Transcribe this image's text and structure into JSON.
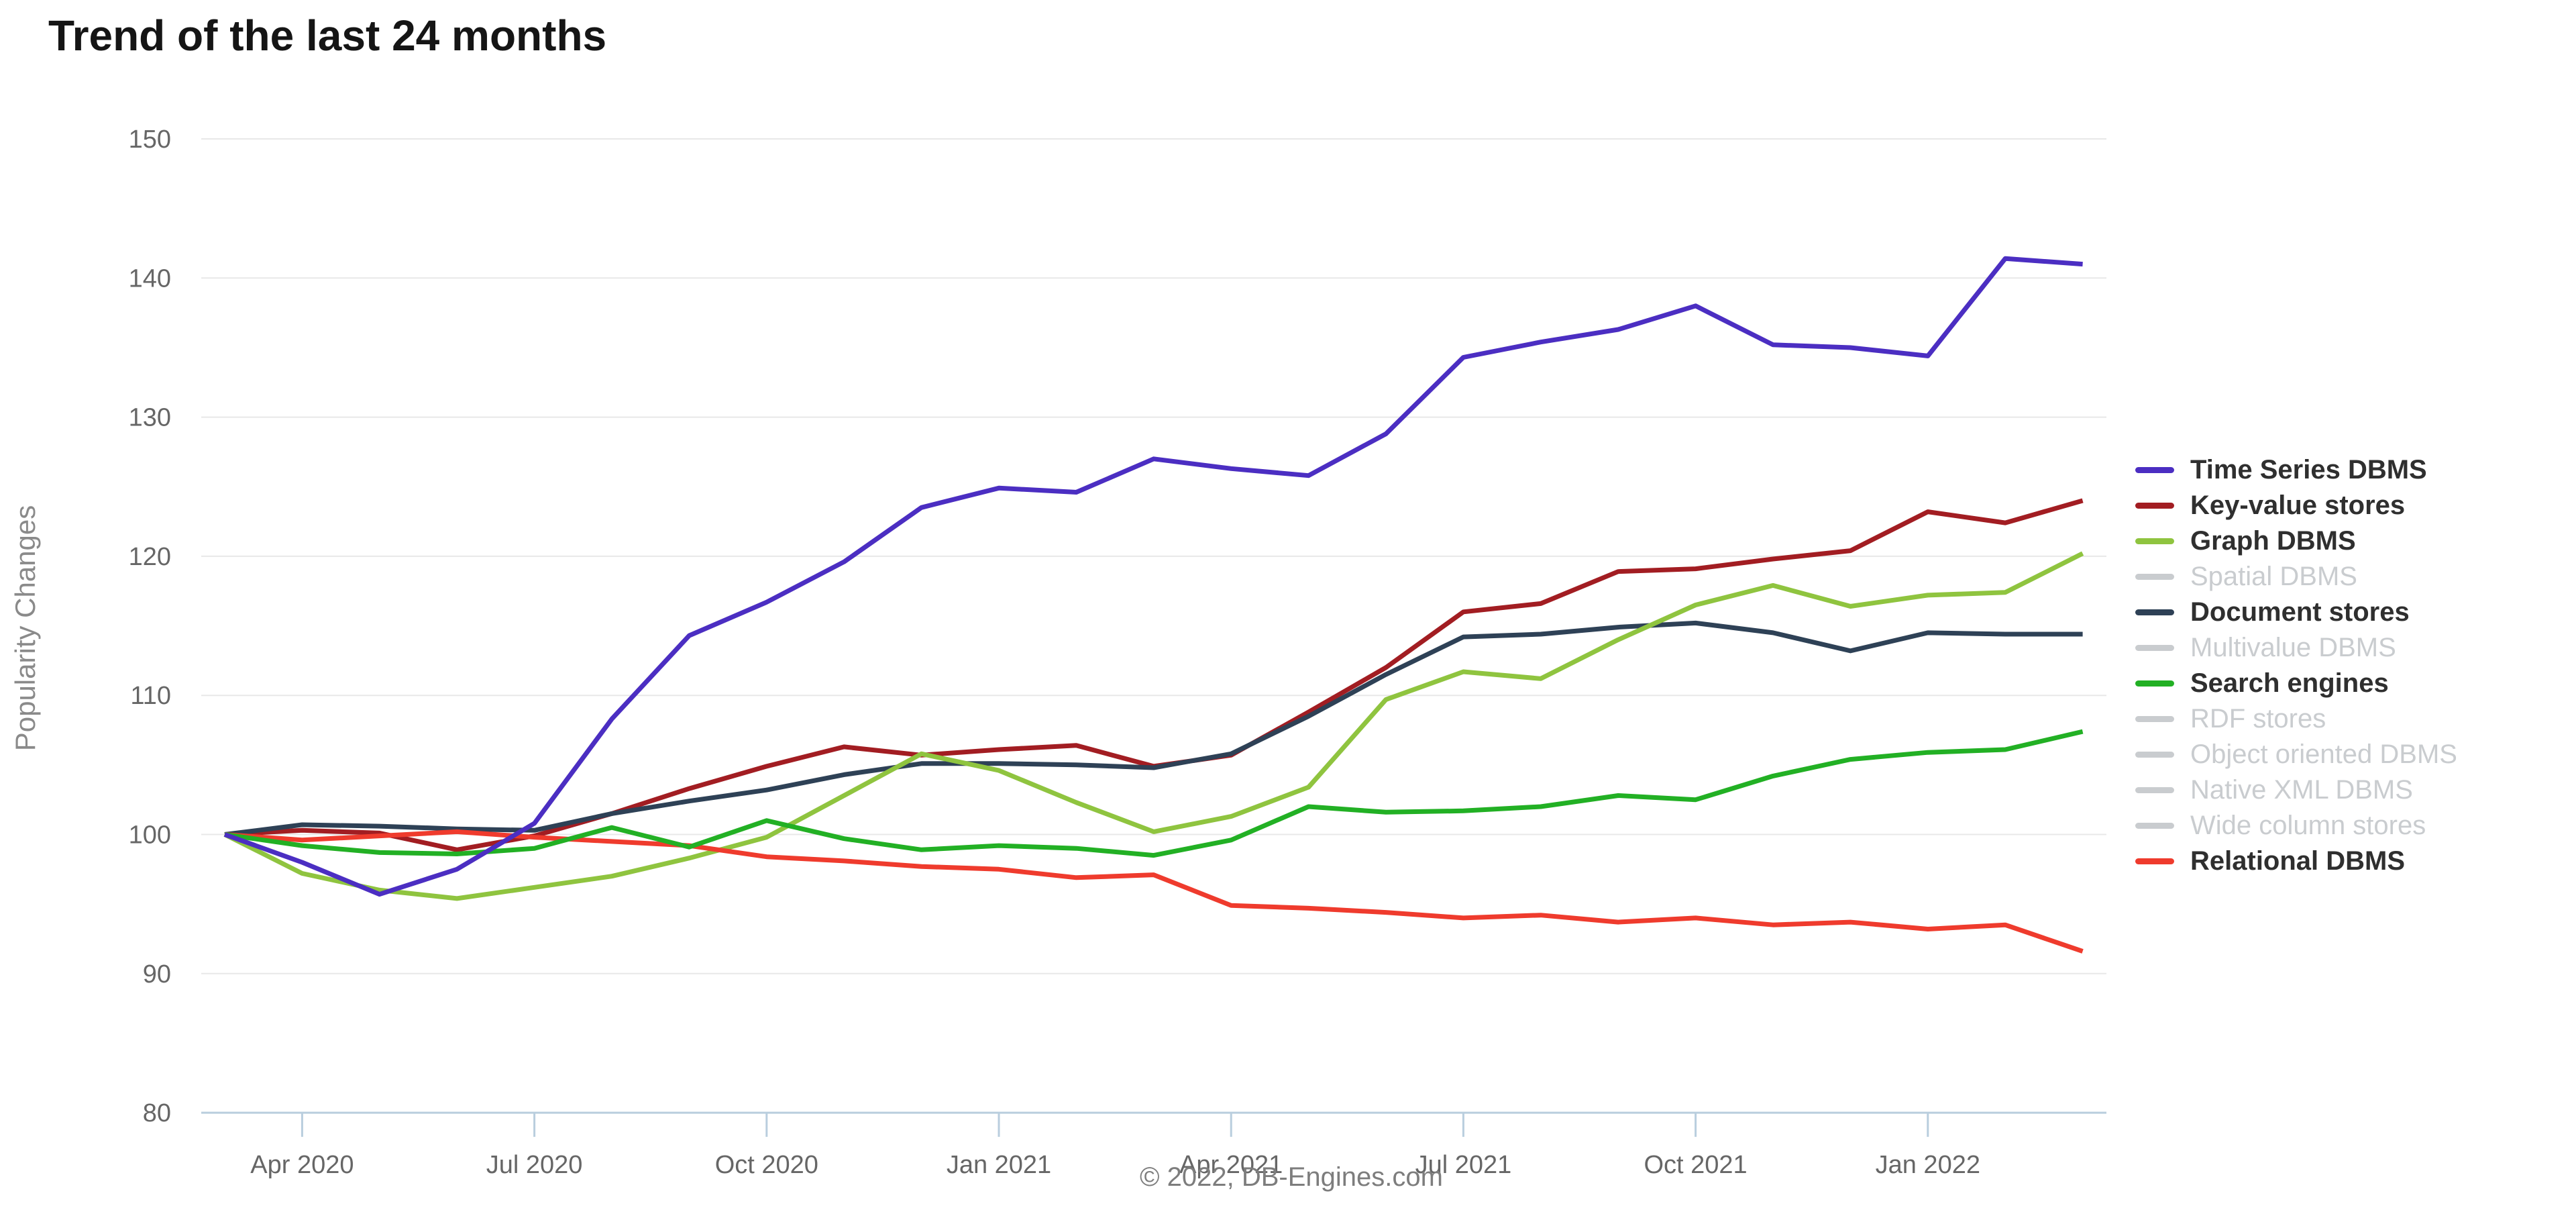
{
  "title": "Trend of the last 24 months",
  "copyright": "© 2022, DB-Engines.com",
  "y_axis": {
    "label": "Popularity Changes",
    "ticks": [
      150,
      140,
      130,
      120,
      110,
      100,
      90,
      80
    ]
  },
  "x_axis": {
    "tick_labels": [
      "Apr 2020",
      "Jul 2020",
      "Oct 2020",
      "Jan 2021",
      "Apr 2021",
      "Jul 2021",
      "Oct 2021",
      "Jan 2022"
    ],
    "tick_month_indices": [
      1,
      4,
      7,
      10,
      13,
      16,
      19,
      22
    ]
  },
  "colors": {
    "grid": "#e8e8e8",
    "baseline": "#b9cede",
    "tick_text": "#666666",
    "inactive": "#c9cccf"
  },
  "legend": [
    {
      "label": "Time Series DBMS",
      "color": "#4b2ec2",
      "active": true
    },
    {
      "label": "Key-value stores",
      "color": "#a21d22",
      "active": true
    },
    {
      "label": "Graph DBMS",
      "color": "#8fc43f",
      "active": true
    },
    {
      "label": "Spatial DBMS",
      "color": "#c9cccf",
      "active": false
    },
    {
      "label": "Document stores",
      "color": "#2e4156",
      "active": true
    },
    {
      "label": "Multivalue DBMS",
      "color": "#c9cccf",
      "active": false
    },
    {
      "label": "Search engines",
      "color": "#22b024",
      "active": true
    },
    {
      "label": "RDF stores",
      "color": "#c9cccf",
      "active": false
    },
    {
      "label": "Object oriented DBMS",
      "color": "#c9cccf",
      "active": false
    },
    {
      "label": "Native XML DBMS",
      "color": "#c9cccf",
      "active": false
    },
    {
      "label": "Wide column stores",
      "color": "#c9cccf",
      "active": false
    },
    {
      "label": "Relational DBMS",
      "color": "#ef3b2d",
      "active": true
    }
  ],
  "chart_data": {
    "type": "line",
    "title": "Trend of the last 24 months",
    "xlabel": "",
    "ylabel": "Popularity Changes",
    "ylim": [
      80,
      150
    ],
    "grid": true,
    "legend_position": "right",
    "x": [
      "Mar 2020",
      "Apr 2020",
      "May 2020",
      "Jun 2020",
      "Jul 2020",
      "Aug 2020",
      "Sep 2020",
      "Oct 2020",
      "Nov 2020",
      "Dec 2020",
      "Jan 2021",
      "Feb 2021",
      "Mar 2021",
      "Apr 2021",
      "May 2021",
      "Jun 2021",
      "Jul 2021",
      "Aug 2021",
      "Sep 2021",
      "Oct 2021",
      "Nov 2021",
      "Dec 2021",
      "Jan 2022",
      "Feb 2022",
      "Mar 2022"
    ],
    "series": [
      {
        "name": "Key-value stores",
        "color": "#a21d22",
        "values": [
          100,
          100.3,
          100.1,
          98.9,
          99.9,
          101.5,
          103.3,
          104.9,
          106.3,
          105.7,
          106.1,
          106.4,
          104.9,
          105.7,
          108.8,
          112.0,
          116.0,
          116.6,
          118.9,
          119.1,
          119.8,
          120.4,
          123.2,
          122.4,
          124.0
        ]
      },
      {
        "name": "Document stores",
        "color": "#2e4156",
        "values": [
          100,
          100.7,
          100.6,
          100.4,
          100.3,
          101.5,
          102.4,
          103.2,
          104.3,
          105.1,
          105.1,
          105.0,
          104.8,
          105.8,
          108.5,
          111.5,
          114.2,
          114.4,
          114.9,
          115.2,
          114.5,
          113.2,
          114.5,
          114.4,
          114.4
        ]
      },
      {
        "name": "Graph DBMS",
        "color": "#8fc43f",
        "values": [
          100,
          97.2,
          96.0,
          95.4,
          96.2,
          97.0,
          98.3,
          99.8,
          102.8,
          105.8,
          104.6,
          102.3,
          100.2,
          101.3,
          103.4,
          109.7,
          111.7,
          111.2,
          114.0,
          116.5,
          117.9,
          116.4,
          117.2,
          117.4,
          120.2
        ]
      },
      {
        "name": "Relational DBMS",
        "color": "#ef3b2d",
        "values": [
          100,
          99.6,
          99.9,
          100.2,
          99.8,
          99.5,
          99.2,
          98.4,
          98.1,
          97.7,
          97.5,
          96.9,
          97.1,
          94.9,
          94.7,
          94.4,
          94.0,
          94.2,
          93.7,
          94.0,
          93.5,
          93.7,
          93.2,
          93.5,
          91.6
        ]
      },
      {
        "name": "Search engines",
        "color": "#22b024",
        "values": [
          100,
          99.2,
          98.7,
          98.6,
          99.0,
          100.5,
          99.1,
          101.0,
          99.7,
          98.9,
          99.2,
          99.0,
          98.5,
          99.6,
          102.0,
          101.6,
          101.7,
          102.0,
          102.8,
          102.5,
          104.2,
          105.4,
          105.9,
          106.1,
          107.4
        ]
      },
      {
        "name": "Time Series DBMS",
        "color": "#4b2ec2",
        "values": [
          100,
          98.0,
          95.7,
          97.5,
          100.8,
          108.3,
          114.3,
          116.7,
          119.6,
          123.5,
          124.9,
          124.6,
          127.0,
          126.3,
          125.8,
          128.8,
          134.3,
          135.4,
          136.3,
          138.0,
          135.2,
          135.0,
          134.4,
          141.4,
          141.0
        ]
      }
    ]
  }
}
